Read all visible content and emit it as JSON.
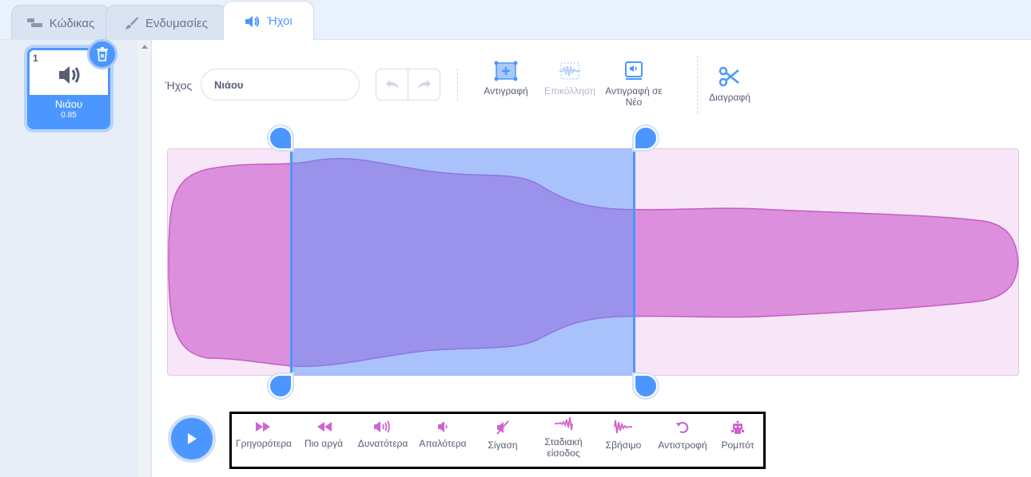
{
  "tabs": [
    {
      "label": "Κώδικας",
      "icon": "code-blocks-icon"
    },
    {
      "label": "Ενδυμασίες",
      "icon": "paintbrush-icon"
    },
    {
      "label": "Ήχοι",
      "icon": "speaker-icon",
      "active": true
    }
  ],
  "sound_list": {
    "items": [
      {
        "index": "1",
        "name": "Νιάου",
        "duration": "0.85",
        "selected": true
      }
    ]
  },
  "editor": {
    "sound_label": "Ήχος",
    "sound_name": "Νιάου",
    "tools": {
      "copy": "Αντιγραφή",
      "paste": "Επικόλληση",
      "copy_to_new": "Αντιγραφή σε Νέο",
      "delete": "Διαγραφή"
    }
  },
  "effects": [
    {
      "label": "Γρηγορότερα",
      "icon": "faster-icon"
    },
    {
      "label": "Πιο αργά",
      "icon": "slower-icon"
    },
    {
      "label": "Δυνατότερα",
      "icon": "louder-icon"
    },
    {
      "label": "Απαλότερα",
      "icon": "softer-icon"
    },
    {
      "label": "Σίγαση",
      "icon": "mute-icon"
    },
    {
      "label": "Σταδιακή είσοδος",
      "icon": "fade-in-icon"
    },
    {
      "label": "Σβήσιμο",
      "icon": "fade-out-icon"
    },
    {
      "label": "Αντιστροφή",
      "icon": "reverse-icon"
    },
    {
      "label": "Ρομπότ",
      "icon": "robot-icon"
    }
  ],
  "colors": {
    "accent": "#4c97ff",
    "effect": "#cf63cf",
    "waveform_fill": "#dc8fdc"
  }
}
